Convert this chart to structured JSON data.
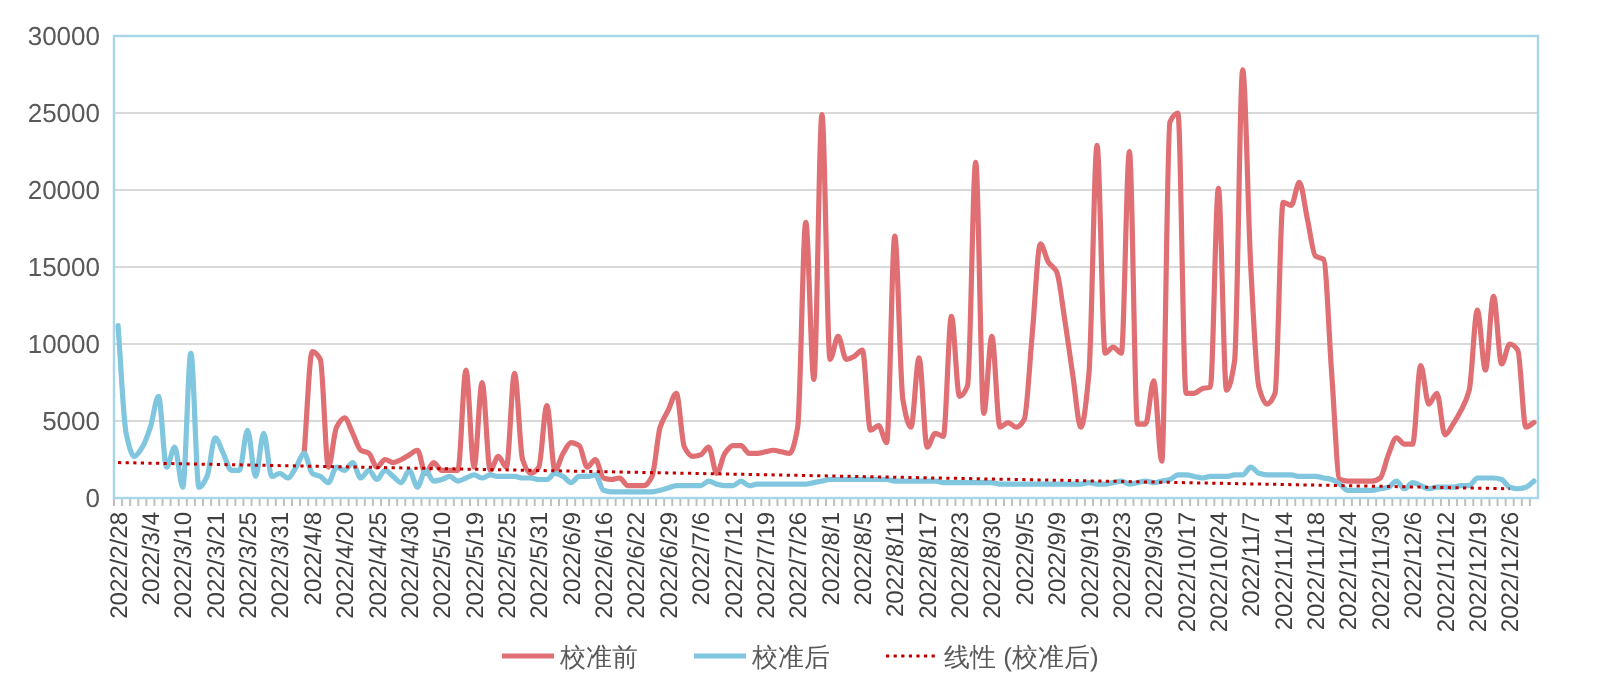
{
  "chart_data": {
    "type": "line",
    "categories": [
      "2022/2/28",
      null,
      null,
      null,
      "2022/3/4",
      null,
      null,
      null,
      "2022/3/10",
      null,
      null,
      null,
      "2022/3/21",
      null,
      null,
      null,
      "2022/3/25",
      null,
      null,
      null,
      "2022/3/31",
      null,
      null,
      null,
      "2022/4/8",
      null,
      null,
      null,
      "2022/4/20",
      null,
      null,
      null,
      "2022/4/25",
      null,
      null,
      null,
      "2022/4/30",
      null,
      null,
      null,
      "2022/5/10",
      null,
      null,
      null,
      "2022/5/19",
      null,
      null,
      null,
      "2022/5/25",
      null,
      null,
      null,
      "2022/5/31",
      null,
      null,
      null,
      "2022/6/9",
      null,
      null,
      null,
      "2022/6/16",
      null,
      null,
      null,
      "2022/6/22",
      null,
      null,
      null,
      "2022/6/29",
      null,
      null,
      null,
      "2022/7/6",
      null,
      null,
      null,
      "2022/7/12",
      null,
      null,
      null,
      "2022/7/19",
      null,
      null,
      null,
      "2022/7/26",
      null,
      null,
      null,
      "2022/8/1",
      null,
      null,
      null,
      "2022/8/5",
      null,
      null,
      null,
      "2022/8/11",
      null,
      null,
      null,
      "2022/8/17",
      null,
      null,
      null,
      "2022/8/23",
      null,
      null,
      null,
      "2022/8/30",
      null,
      null,
      null,
      "2022/9/5",
      null,
      null,
      null,
      "2022/9/9",
      null,
      null,
      null,
      "2022/9/19",
      null,
      null,
      null,
      "2022/9/23",
      null,
      null,
      null,
      "2022/9/30",
      null,
      null,
      null,
      "2022/10/17",
      null,
      null,
      null,
      "2022/10/24",
      null,
      null,
      null,
      "2022/11/7",
      null,
      null,
      null,
      "2022/11/14",
      null,
      null,
      null,
      "2022/11/18",
      null,
      null,
      null,
      "2022/11/24",
      null,
      null,
      null,
      "2022/11/30",
      null,
      null,
      null,
      "2022/12/6",
      null,
      null,
      null,
      "2022/12/12",
      null,
      null,
      null,
      "2022/12/19",
      null,
      null,
      null,
      "2022/12/26",
      null,
      null,
      null
    ],
    "series": [
      {
        "name": "校准前",
        "color": "#df6f73",
        "values": [
          null,
          null,
          null,
          null,
          null,
          null,
          null,
          null,
          null,
          null,
          null,
          null,
          null,
          null,
          null,
          null,
          null,
          null,
          null,
          null,
          null,
          null,
          null,
          2900,
          9500,
          9000,
          2000,
          4600,
          5200,
          4200,
          3100,
          2900,
          2000,
          2500,
          2300,
          2500,
          2800,
          3100,
          1600,
          2300,
          1800,
          1800,
          1800,
          8300,
          2000,
          7500,
          1800,
          2700,
          2000,
          8100,
          2500,
          1600,
          2000,
          6000,
          1800,
          2900,
          3600,
          3400,
          2000,
          2500,
          1300,
          1200,
          1300,
          800,
          800,
          800,
          1400,
          4600,
          5700,
          6800,
          3300,
          2700,
          2800,
          3300,
          1600,
          2900,
          3400,
          3400,
          2900,
          2900,
          3000,
          3100,
          3000,
          2900,
          4600,
          17900,
          7700,
          24900,
          9000,
          10500,
          9000,
          9200,
          9600,
          4400,
          4700,
          3600,
          17000,
          6400,
          4600,
          9100,
          3300,
          4200,
          4000,
          11800,
          6600,
          7300,
          21800,
          5500,
          10500,
          4600,
          4900,
          4600,
          5100,
          10700,
          16500,
          15300,
          14700,
          11600,
          8000,
          4600,
          8100,
          22900,
          9400,
          9800,
          9400,
          22500,
          4800,
          4800,
          7600,
          2400,
          24400,
          25000,
          6800,
          6800,
          7100,
          7200,
          20100,
          7000,
          8900,
          27800,
          15000,
          7200,
          6100,
          6800,
          19200,
          19000,
          20500,
          18100,
          15700,
          15500,
          8100,
          1200,
          1100,
          1100,
          1100,
          1100,
          1300,
          2800,
          3900,
          3500,
          3500,
          8600,
          6100,
          6800,
          4100,
          4800,
          5700,
          7000,
          12200,
          8300,
          13100,
          8700,
          10000,
          9600,
          4600,
          4900
        ]
      },
      {
        "name": "校准后",
        "color": "#7fc6de",
        "values": [
          11200,
          4200,
          2700,
          3300,
          4600,
          6600,
          2000,
          3300,
          700,
          9400,
          700,
          1400,
          3900,
          2900,
          1800,
          1800,
          4400,
          1400,
          4200,
          1400,
          1600,
          1300,
          2000,
          2900,
          1600,
          1400,
          1000,
          2000,
          1800,
          2300,
          1300,
          1800,
          1200,
          1800,
          1400,
          1000,
          1800,
          700,
          1800,
          1100,
          1200,
          1400,
          1100,
          1300,
          1500,
          1300,
          1500,
          1400,
          1400,
          1400,
          1300,
          1300,
          1200,
          1200,
          1600,
          1400,
          1000,
          1400,
          1400,
          1500,
          500,
          400,
          400,
          400,
          400,
          400,
          400,
          500,
          650,
          800,
          800,
          800,
          800,
          1100,
          900,
          800,
          800,
          1100,
          800,
          900,
          900,
          900,
          900,
          900,
          900,
          900,
          1000,
          1100,
          1200,
          1200,
          1200,
          1200,
          1200,
          1200,
          1200,
          1200,
          1100,
          1100,
          1100,
          1100,
          1100,
          1100,
          1000,
          1000,
          1000,
          1000,
          1000,
          1000,
          1000,
          900,
          900,
          900,
          900,
          900,
          900,
          900,
          900,
          900,
          900,
          900,
          1000,
          900,
          900,
          1000,
          1100,
          900,
          1000,
          1100,
          1000,
          1100,
          1200,
          1500,
          1500,
          1400,
          1300,
          1400,
          1400,
          1400,
          1500,
          1500,
          2000,
          1600,
          1500,
          1500,
          1500,
          1500,
          1400,
          1400,
          1400,
          1300,
          1200,
          900,
          500,
          500,
          500,
          500,
          600,
          700,
          1100,
          600,
          1000,
          800,
          600,
          700,
          700,
          700,
          800,
          800,
          1300,
          1300,
          1300,
          1200,
          700,
          600,
          700,
          1100
        ]
      },
      {
        "name": "线性 (校准后)",
        "color": "#c00000",
        "type": "line",
        "line_style": "dotted",
        "x": [
          "2022/2/28",
          "2022/12/26"
        ],
        "values": [
          2300,
          600
        ]
      }
    ],
    "ylim": [
      0,
      30000
    ],
    "yticks": [
      0,
      5000,
      10000,
      15000,
      20000,
      25000,
      30000
    ],
    "grid": "y",
    "legend": "bottom"
  }
}
